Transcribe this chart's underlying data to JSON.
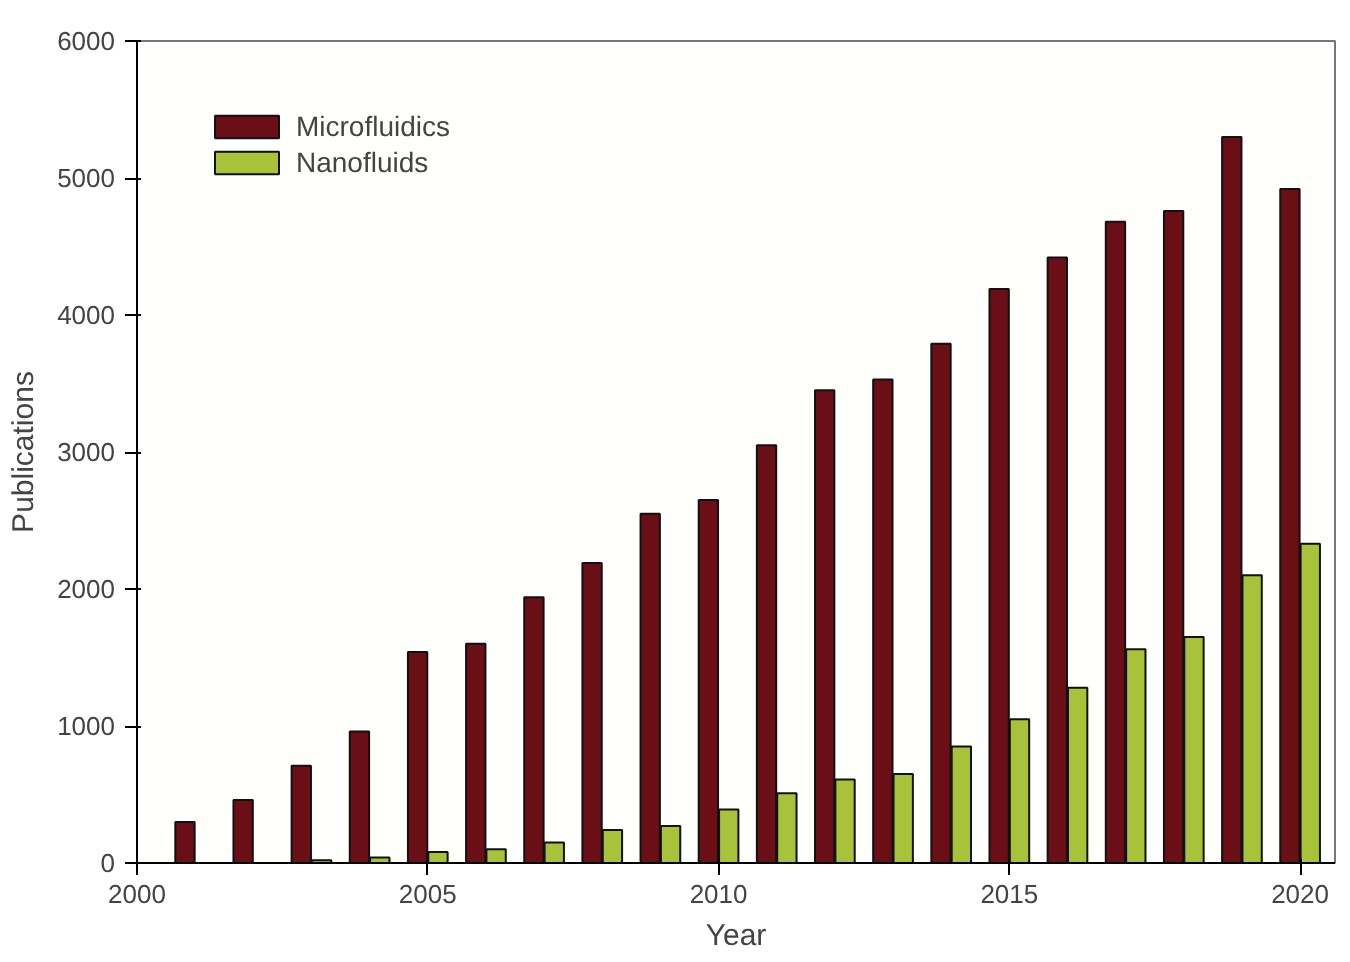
{
  "chart_data": {
    "type": "bar",
    "xlabel": "Year",
    "ylabel": "Publications",
    "x": [
      2001,
      2002,
      2003,
      2004,
      2005,
      2006,
      2007,
      2008,
      2009,
      2010,
      2011,
      2012,
      2013,
      2014,
      2015,
      2016,
      2017,
      2018,
      2019,
      2020
    ],
    "series": [
      {
        "name": "Microfluidics",
        "color": "#6b0f16",
        "values": [
          300,
          460,
          710,
          960,
          1540,
          1600,
          1940,
          2190,
          2550,
          2650,
          3050,
          3450,
          3530,
          3790,
          4190,
          4420,
          4680,
          4760,
          5300,
          4920
        ]
      },
      {
        "name": "Nanofluids",
        "color": "#a8c23a",
        "values": [
          null,
          null,
          20,
          40,
          80,
          100,
          150,
          240,
          270,
          390,
          510,
          610,
          650,
          850,
          1050,
          1280,
          1560,
          1650,
          2100,
          2330
        ]
      }
    ],
    "xlim": [
      2000,
      2020.6
    ],
    "ylim": [
      0,
      6000
    ],
    "xticks": [
      2000,
      2005,
      2010,
      2015,
      2020
    ],
    "yticks": [
      0,
      1000,
      2000,
      3000,
      4000,
      5000,
      6000
    ],
    "grid": false,
    "legend": "top left"
  }
}
